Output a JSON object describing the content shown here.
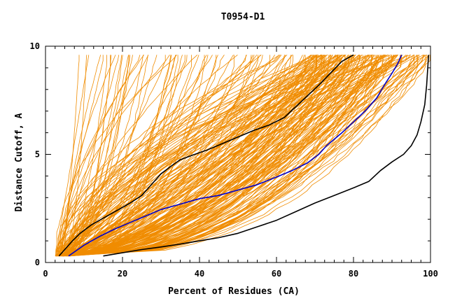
{
  "chart_data": {
    "type": "line",
    "title": "T0954-D1",
    "xlabel": "Percent of Residues (CA)",
    "ylabel": "Distance Cutoff, A",
    "xlim": [
      0,
      100
    ],
    "ylim": [
      0,
      10
    ],
    "x_ticks": [
      0,
      20,
      40,
      60,
      80,
      100
    ],
    "y_ticks": [
      0,
      5,
      10
    ],
    "x_minor_step": 2.5,
    "y_minor_step": 1,
    "grid": false,
    "legend": "none",
    "colors": {
      "background_lines": "#f08c00",
      "highlight_black": "#000000",
      "highlight_blue": "#0000cc",
      "axis": "#000000",
      "text": "#000000"
    },
    "background_series": {
      "description_count": 240,
      "min_start_x": 2.5,
      "max_start_x": 6.5,
      "start_y": 0.3,
      "top_y": 9.6
    },
    "series": [
      {
        "name": "black-upper",
        "color": "#000000",
        "x": [
          3.5,
          5,
          7,
          9,
          12,
          15,
          18,
          22,
          25,
          27,
          30,
          33,
          35,
          38,
          42,
          46,
          50,
          54,
          58,
          62,
          65,
          68,
          71,
          74,
          77,
          80
        ],
        "y": [
          0.3,
          0.6,
          1.0,
          1.35,
          1.75,
          2.05,
          2.35,
          2.75,
          3.1,
          3.5,
          4.1,
          4.5,
          4.75,
          4.95,
          5.2,
          5.5,
          5.8,
          6.1,
          6.35,
          6.7,
          7.2,
          7.7,
          8.2,
          8.75,
          9.3,
          9.6
        ]
      },
      {
        "name": "blue-median",
        "color": "#0000cc",
        "x": [
          6,
          8,
          10,
          14,
          18,
          22,
          26,
          30,
          35,
          40,
          45,
          50,
          55,
          60,
          64,
          68,
          71,
          73,
          75,
          77,
          80,
          83,
          86,
          88,
          90,
          91.5,
          92.5
        ],
        "y": [
          0.3,
          0.55,
          0.8,
          1.2,
          1.55,
          1.85,
          2.15,
          2.45,
          2.7,
          2.95,
          3.1,
          3.35,
          3.6,
          3.95,
          4.25,
          4.6,
          5.0,
          5.4,
          5.7,
          6.0,
          6.5,
          7.0,
          7.6,
          8.2,
          8.75,
          9.2,
          9.6
        ]
      },
      {
        "name": "black-lower",
        "color": "#000000",
        "x": [
          15,
          20,
          25,
          30,
          35,
          40,
          45,
          50,
          55,
          60,
          65,
          70,
          75,
          80,
          84,
          87,
          90,
          93,
          95,
          96.5,
          97.5,
          98.5,
          99,
          99.3,
          99.5
        ],
        "y": [
          0.3,
          0.45,
          0.6,
          0.72,
          0.85,
          1.0,
          1.15,
          1.35,
          1.65,
          1.95,
          2.35,
          2.75,
          3.1,
          3.45,
          3.75,
          4.25,
          4.65,
          5.0,
          5.4,
          5.9,
          6.5,
          7.3,
          8.2,
          9.0,
          9.6
        ]
      }
    ]
  }
}
